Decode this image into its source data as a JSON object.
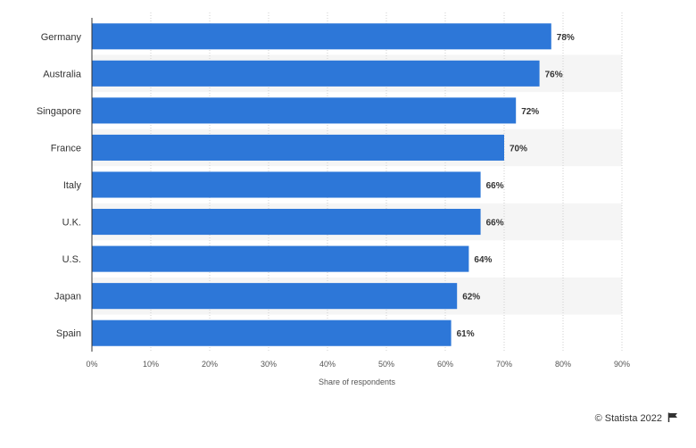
{
  "chart_data": {
    "type": "bar",
    "orientation": "horizontal",
    "categories": [
      "Germany",
      "Australia",
      "Singapore",
      "France",
      "Italy",
      "U.K.",
      "U.S.",
      "Japan",
      "Spain"
    ],
    "values": [
      78,
      76,
      72,
      70,
      66,
      66,
      64,
      62,
      61
    ],
    "value_labels": [
      "78%",
      "76%",
      "72%",
      "70%",
      "66%",
      "66%",
      "64%",
      "62%",
      "61%"
    ],
    "xlabel": "Share of respondents",
    "xlim": [
      0,
      90
    ],
    "x_ticks": [
      0,
      10,
      20,
      30,
      40,
      50,
      60,
      70,
      80,
      90
    ],
    "x_tick_labels": [
      "0%",
      "10%",
      "20%",
      "30%",
      "40%",
      "50%",
      "60%",
      "70%",
      "80%",
      "90%"
    ],
    "bar_color": "#2d77d8",
    "band_color": "#f5f5f5",
    "grid": true,
    "legend": false
  },
  "credit": {
    "text": "© Statista 2022",
    "icon": "flag-icon"
  }
}
